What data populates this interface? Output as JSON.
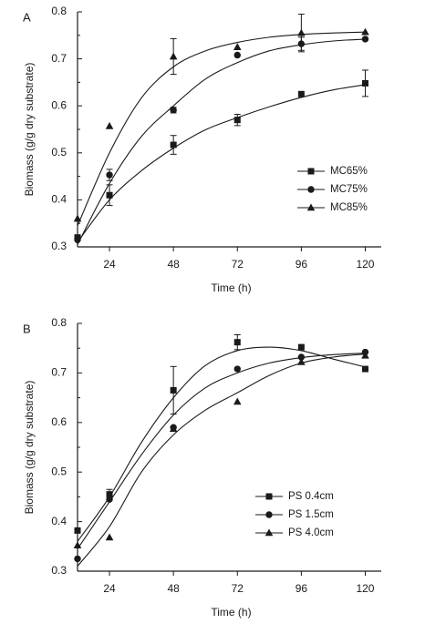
{
  "chart_data": [
    {
      "panel_label": "A",
      "type": "scatter",
      "xlabel": "Time (h)",
      "ylabel": "Biomass (g/g dry substrate)",
      "xlim": [
        12,
        126
      ],
      "ylim": [
        0.3,
        0.8
      ],
      "x_ticks": [
        24,
        48,
        72,
        96,
        120
      ],
      "y_ticks": [
        0.3,
        0.4,
        0.5,
        0.6,
        0.7,
        0.8
      ],
      "legend_position": "center-right",
      "grid": false,
      "series": [
        {
          "name": "MC65%",
          "marker": "square",
          "points": [
            {
              "x": 12,
              "y": 0.32
            },
            {
              "x": 24,
              "y": 0.41,
              "err": 0.022
            },
            {
              "x": 48,
              "y": 0.517,
              "err": 0.02
            },
            {
              "x": 72,
              "y": 0.57,
              "err": 0.012
            },
            {
              "x": 96,
              "y": 0.625
            },
            {
              "x": 120,
              "y": 0.648,
              "err": 0.028
            }
          ],
          "curve": [
            [
              12,
              0.31
            ],
            [
              24,
              0.4
            ],
            [
              36,
              0.462
            ],
            [
              48,
              0.51
            ],
            [
              60,
              0.549
            ],
            [
              72,
              0.575
            ],
            [
              84,
              0.598
            ],
            [
              96,
              0.618
            ],
            [
              108,
              0.634
            ],
            [
              120,
              0.645
            ]
          ]
        },
        {
          "name": "MC75%",
          "marker": "circle",
          "points": [
            {
              "x": 12,
              "y": 0.315
            },
            {
              "x": 24,
              "y": 0.453,
              "err": 0.012
            },
            {
              "x": 48,
              "y": 0.591,
              "err": 0.006
            },
            {
              "x": 72,
              "y": 0.708
            },
            {
              "x": 96,
              "y": 0.732,
              "err": 0.014
            },
            {
              "x": 120,
              "y": 0.742
            }
          ],
          "curve": [
            [
              12,
              0.305
            ],
            [
              24,
              0.435
            ],
            [
              36,
              0.535
            ],
            [
              48,
              0.6
            ],
            [
              60,
              0.657
            ],
            [
              72,
              0.692
            ],
            [
              84,
              0.717
            ],
            [
              96,
              0.73
            ],
            [
              108,
              0.738
            ],
            [
              120,
              0.742
            ]
          ]
        },
        {
          "name": "MC85%",
          "marker": "triangle",
          "points": [
            {
              "x": 12,
              "y": 0.36
            },
            {
              "x": 24,
              "y": 0.557
            },
            {
              "x": 48,
              "y": 0.705,
              "err": 0.038
            },
            {
              "x": 72,
              "y": 0.725
            },
            {
              "x": 96,
              "y": 0.755,
              "err": 0.04
            },
            {
              "x": 120,
              "y": 0.757
            }
          ],
          "curve": [
            [
              12,
              0.345
            ],
            [
              24,
              0.5
            ],
            [
              36,
              0.617
            ],
            [
              48,
              0.683
            ],
            [
              60,
              0.717
            ],
            [
              72,
              0.735
            ],
            [
              84,
              0.746
            ],
            [
              96,
              0.752
            ],
            [
              108,
              0.755
            ],
            [
              120,
              0.757
            ]
          ]
        }
      ]
    },
    {
      "panel_label": "B",
      "type": "scatter",
      "xlabel": "Time (h)",
      "ylabel": "Biomass (g/g dry substrate)",
      "xlim": [
        12,
        126
      ],
      "ylim": [
        0.3,
        0.8
      ],
      "x_ticks": [
        24,
        48,
        72,
        96,
        120
      ],
      "y_ticks": [
        0.3,
        0.4,
        0.5,
        0.6,
        0.7,
        0.8
      ],
      "legend_position": "center-right",
      "grid": false,
      "series": [
        {
          "name": "PS 0.4cm",
          "marker": "square",
          "points": [
            {
              "x": 12,
              "y": 0.382
            },
            {
              "x": 24,
              "y": 0.455,
              "err": 0.01
            },
            {
              "x": 48,
              "y": 0.665,
              "err": 0.048
            },
            {
              "x": 72,
              "y": 0.762,
              "err": 0.015
            },
            {
              "x": 96,
              "y": 0.752
            },
            {
              "x": 120,
              "y": 0.708
            }
          ],
          "curve": [
            [
              12,
              0.36
            ],
            [
              24,
              0.45
            ],
            [
              36,
              0.56
            ],
            [
              48,
              0.65
            ],
            [
              60,
              0.715
            ],
            [
              72,
              0.745
            ],
            [
              84,
              0.752
            ],
            [
              96,
              0.745
            ],
            [
              108,
              0.728
            ],
            [
              120,
              0.712
            ]
          ]
        },
        {
          "name": "PS 1.5cm",
          "marker": "circle",
          "points": [
            {
              "x": 12,
              "y": 0.325
            },
            {
              "x": 24,
              "y": 0.445
            },
            {
              "x": 48,
              "y": 0.59
            },
            {
              "x": 72,
              "y": 0.708
            },
            {
              "x": 96,
              "y": 0.732
            },
            {
              "x": 120,
              "y": 0.742
            }
          ],
          "curve": [
            [
              12,
              0.345
            ],
            [
              24,
              0.44
            ],
            [
              36,
              0.535
            ],
            [
              48,
              0.615
            ],
            [
              60,
              0.67
            ],
            [
              72,
              0.7
            ],
            [
              84,
              0.72
            ],
            [
              96,
              0.731
            ],
            [
              108,
              0.737
            ],
            [
              120,
              0.74
            ]
          ]
        },
        {
          "name": "PS 4.0cm",
          "marker": "triangle",
          "points": [
            {
              "x": 12,
              "y": 0.352
            },
            {
              "x": 24,
              "y": 0.368
            },
            {
              "x": 48,
              "y": 0.587
            },
            {
              "x": 72,
              "y": 0.642
            },
            {
              "x": 96,
              "y": 0.722
            },
            {
              "x": 120,
              "y": 0.735
            }
          ],
          "curve": [
            [
              12,
              0.31
            ],
            [
              24,
              0.39
            ],
            [
              36,
              0.5
            ],
            [
              48,
              0.575
            ],
            [
              60,
              0.625
            ],
            [
              72,
              0.66
            ],
            [
              84,
              0.695
            ],
            [
              96,
              0.72
            ],
            [
              108,
              0.732
            ],
            [
              120,
              0.738
            ]
          ]
        }
      ]
    }
  ]
}
